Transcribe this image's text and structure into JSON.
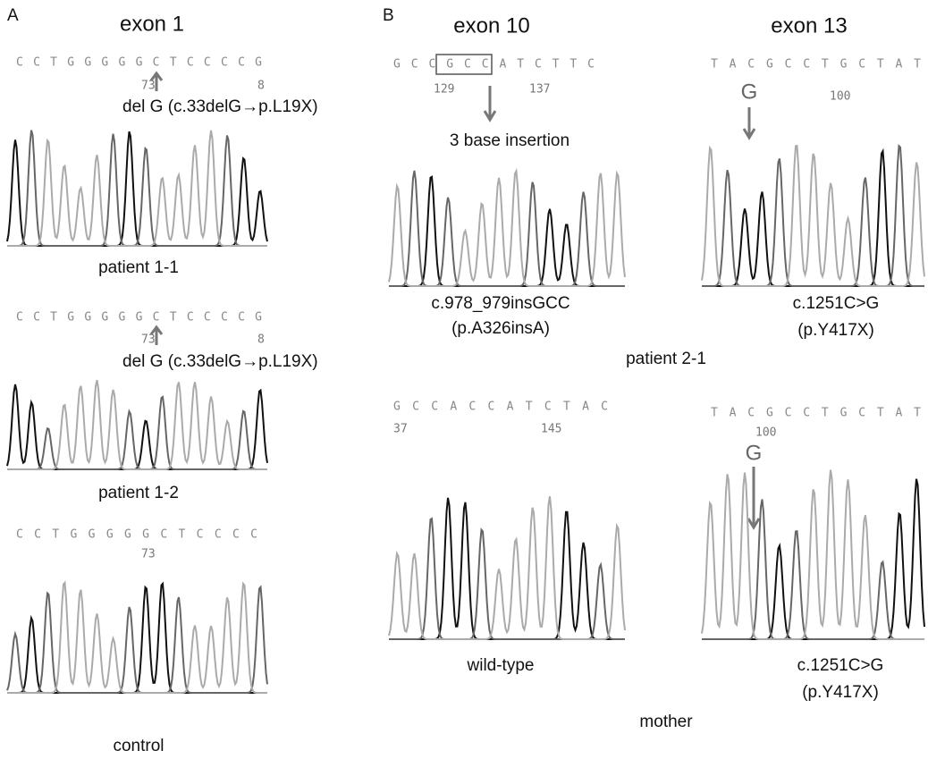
{
  "panel_a": {
    "label": "A",
    "title": "exon 1",
    "samples": [
      {
        "sequence": "CCTGGGGGCTCCCCG",
        "positions": [
          73,
          8
        ],
        "annotation": "del G (c.33delG→p.L19X)",
        "name": "patient 1-1"
      },
      {
        "sequence": "CCTGGGGGCTCCCCG",
        "positions": [
          73,
          8
        ],
        "annotation": "del G (c.33delG→p.L19X)",
        "name": "patient 1-2"
      },
      {
        "sequence": "CCTGGGGGCTCCCC",
        "positions": [
          73
        ],
        "name": "control"
      }
    ]
  },
  "panel_b": {
    "label": "B",
    "exon10_title": "exon 10",
    "exon13_title": "exon 13",
    "patient": {
      "name": "patient 2-1",
      "exon10": {
        "sequence": "GCCGCCATCTTC",
        "positions": [
          129,
          137
        ],
        "annotation": "3 base insertion",
        "mutation": "c.978_979insGCC",
        "protein": "(p.A326insA)"
      },
      "exon13": {
        "sequence": "TACGCCTGCTAT",
        "base": "G",
        "positions": [
          100
        ],
        "mutation": "c.1251C>G",
        "protein": "(p.Y417X)"
      }
    },
    "mother": {
      "name": "mother",
      "exon10": {
        "sequence": "GCCACCATCTAC",
        "positions": [
          37,
          145
        ],
        "annotation": "wild-type"
      },
      "exon13": {
        "sequence": "TACGCCTGCTAT",
        "base": "G",
        "positions": [
          100
        ],
        "mutation": "c.1251C>G",
        "protein": "(p.Y417X)"
      }
    }
  }
}
